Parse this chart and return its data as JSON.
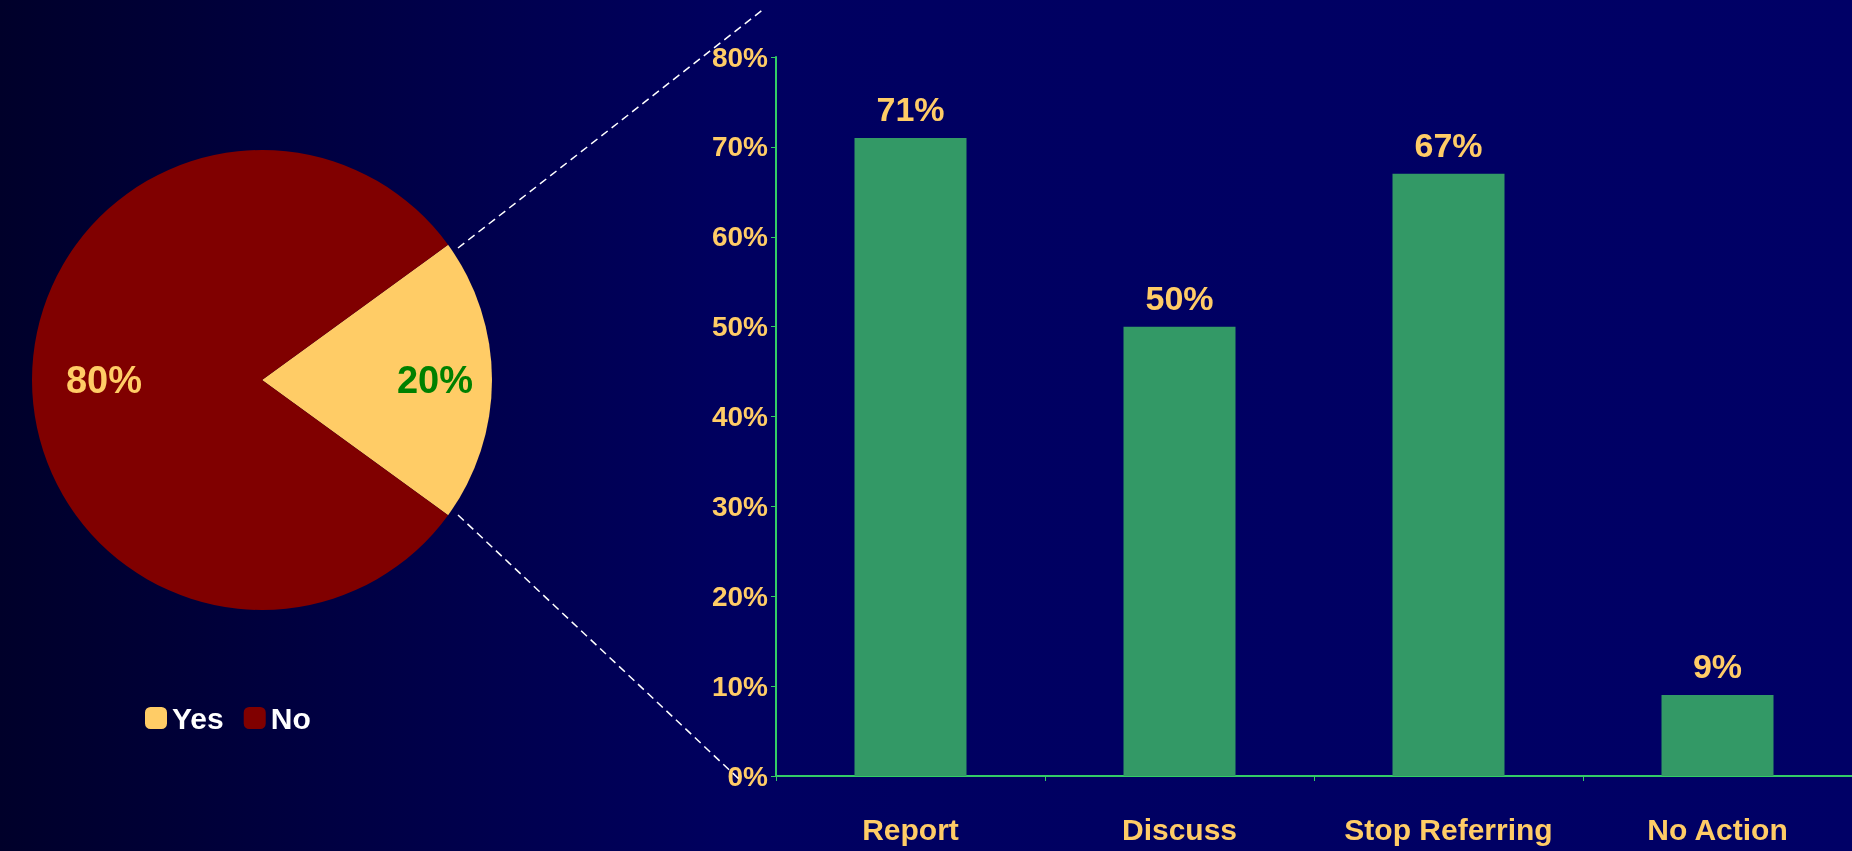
{
  "chart_data": [
    {
      "type": "pie",
      "categories": [
        "Yes",
        "No"
      ],
      "values": [
        20,
        80
      ],
      "colors": [
        "#ffcc66",
        "#800000"
      ],
      "value_labels": [
        "20%",
        "80%"
      ],
      "legend": "bottom"
    },
    {
      "type": "bar",
      "categories": [
        "Report",
        "Discuss",
        "Stop Referring",
        "No Action"
      ],
      "values": [
        71,
        50,
        67,
        9
      ],
      "color": "#339966",
      "value_labels": [
        "71%",
        "50%",
        "67%",
        "9%"
      ],
      "ylim": [
        0,
        80
      ],
      "yticks": [
        {
          "value": 0,
          "label": "0%"
        },
        {
          "value": 10,
          "label": "10%"
        },
        {
          "value": 20,
          "label": "20%"
        },
        {
          "value": 30,
          "label": "30%"
        },
        {
          "value": 40,
          "label": "40%"
        },
        {
          "value": 50,
          "label": "50%"
        },
        {
          "value": 60,
          "label": "60%"
        },
        {
          "value": 70,
          "label": "70%"
        },
        {
          "value": 80,
          "label": "80%"
        }
      ],
      "grid": false
    }
  ]
}
